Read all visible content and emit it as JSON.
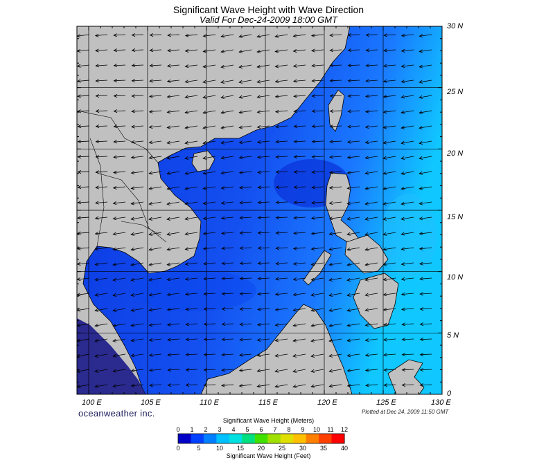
{
  "header": {
    "title": "Significant Wave Height with Wave Direction",
    "subtitle": "Valid For Dec-24-2009 18:00 GMT"
  },
  "map": {
    "lon_labels": [
      "100 E",
      "105 E",
      "110 E",
      "115 E",
      "120 E",
      "125 E",
      "130 E"
    ],
    "lat_labels": [
      "30 N",
      "25 N",
      "20 N",
      "15 N",
      "10 N",
      "5 N",
      "0"
    ],
    "lon_range": [
      99,
      130
    ],
    "lat_range": [
      0,
      30
    ],
    "land_color": "#c0c0c0",
    "wave_direction": "from north-east"
  },
  "footer": {
    "brand": "oceanweather inc.",
    "plotted": "Plotted at Dec 24, 2009 11:50 GMT"
  },
  "colorbar": {
    "title_meters": "Significant Wave Height (Meters)",
    "title_feet": "Significant Wave Height (Feet)",
    "meter_ticks": [
      "0",
      "1",
      "2",
      "3",
      "4",
      "5",
      "6",
      "7",
      "8",
      "9",
      "10",
      "11",
      "12"
    ],
    "feet_ticks": [
      "0",
      "5",
      "10",
      "15",
      "20",
      "25",
      "30",
      "35",
      "40"
    ],
    "colors": [
      "#0000c8",
      "#0040ff",
      "#0080ff",
      "#00c0ff",
      "#00e0e0",
      "#00e080",
      "#40e000",
      "#a0e000",
      "#e0e000",
      "#ffc000",
      "#ff8000",
      "#ff4000",
      "#ff0000"
    ]
  }
}
